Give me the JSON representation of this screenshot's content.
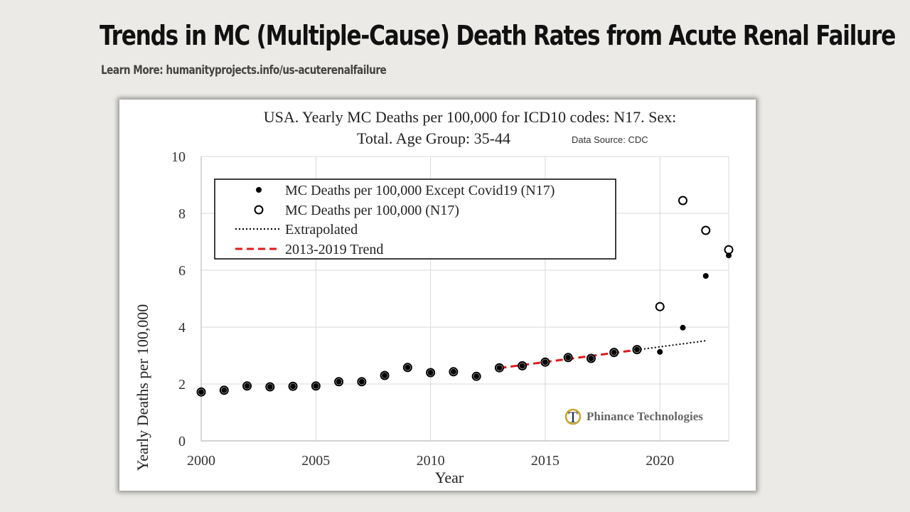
{
  "header": {
    "title": "Trends in MC (Multiple-Cause) Death Rates from Acute Renal Failure",
    "learn_more": "Learn More: humanityprojects.info/us-acuterenalfailure"
  },
  "watermark": {
    "logo_letter": "T",
    "text": "Phinance Technologies"
  },
  "chart_data": {
    "type": "scatter",
    "title_line1": "USA. Yearly MC Deaths per 100,000 for ICD10 codes: N17. Sex:",
    "title_line2": "Total. Age Group: 35-44",
    "source_note": "Data Source: CDC",
    "xlabel": "Year",
    "ylabel": "Yearly Deaths per 100,000",
    "xlim": [
      2000,
      2023
    ],
    "ylim": [
      0,
      10
    ],
    "x_ticks": [
      "2000",
      "2005",
      "2010",
      "2015",
      "2020"
    ],
    "y_ticks": [
      "0",
      "2",
      "4",
      "6",
      "8",
      "10"
    ],
    "grid": true,
    "legend_position": "top-left",
    "colors": {
      "points": "#000000",
      "trend": "#e11a1a",
      "extrapolated": "#000000",
      "grid": "#d9d9d9"
    },
    "series": [
      {
        "name": "MC Deaths per 100,000 Except Covid19 (N17)",
        "marker": "filled-dot",
        "x": [
          2000,
          2001,
          2002,
          2003,
          2004,
          2005,
          2006,
          2007,
          2008,
          2009,
          2010,
          2011,
          2012,
          2013,
          2014,
          2015,
          2016,
          2017,
          2018,
          2019,
          2020,
          2021,
          2022,
          2023
        ],
        "y": [
          1.72,
          1.78,
          1.93,
          1.9,
          1.92,
          1.93,
          2.08,
          2.08,
          2.3,
          2.58,
          2.4,
          2.43,
          2.27,
          2.57,
          2.64,
          2.77,
          2.93,
          2.9,
          3.11,
          3.21,
          3.13,
          3.98,
          5.8,
          6.52
        ]
      },
      {
        "name": "MC Deaths per 100,000 (N17)",
        "marker": "open-circle",
        "x": [
          2000,
          2001,
          2002,
          2003,
          2004,
          2005,
          2006,
          2007,
          2008,
          2009,
          2010,
          2011,
          2012,
          2013,
          2014,
          2015,
          2016,
          2017,
          2018,
          2019,
          2020,
          2021,
          2022,
          2023
        ],
        "y": [
          1.72,
          1.78,
          1.93,
          1.9,
          1.92,
          1.93,
          2.08,
          2.08,
          2.3,
          2.58,
          2.4,
          2.43,
          2.27,
          2.57,
          2.64,
          2.77,
          2.93,
          2.9,
          3.11,
          3.21,
          4.72,
          8.45,
          7.4,
          6.72
        ]
      },
      {
        "name": "Extrapolated",
        "line": "dotted",
        "x": [
          2019,
          2022
        ],
        "y": [
          3.2,
          3.52
        ]
      },
      {
        "name": "2013-2019 Trend",
        "line": "dashed",
        "x": [
          2013,
          2019
        ],
        "y": [
          2.56,
          3.2
        ]
      }
    ]
  }
}
